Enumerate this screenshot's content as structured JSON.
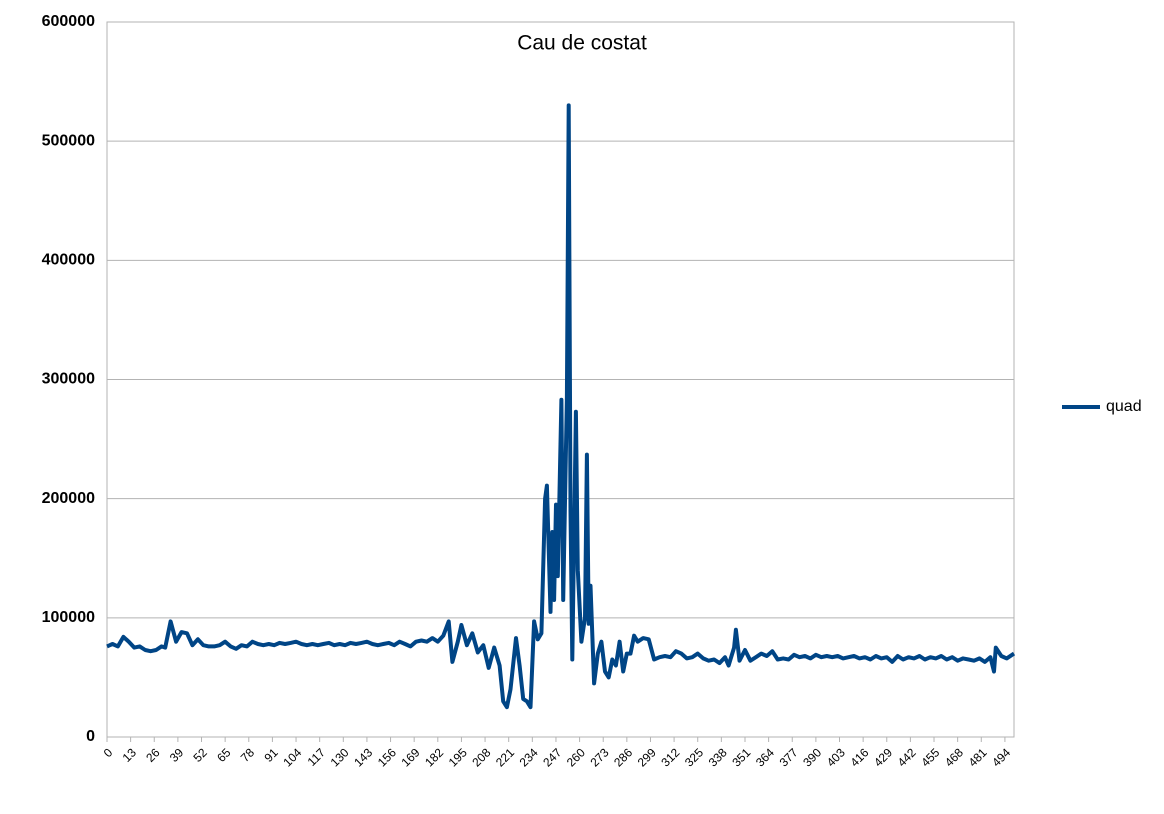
{
  "chart_data": {
    "type": "line",
    "title": "Cau de costat",
    "x": [
      0,
      3,
      6,
      9,
      12,
      15,
      18,
      21,
      24,
      27,
      30,
      32,
      35,
      38,
      41,
      44,
      47,
      50,
      53,
      56,
      59,
      62,
      65,
      68,
      71,
      74,
      77,
      80,
      83,
      86,
      89,
      92,
      95,
      98,
      101,
      104,
      107,
      110,
      113,
      116,
      119,
      122,
      125,
      128,
      131,
      134,
      137,
      140,
      143,
      146,
      149,
      152,
      155,
      158,
      161,
      164,
      167,
      170,
      173,
      176,
      179,
      182,
      185,
      188,
      190,
      193,
      195,
      198,
      201,
      204,
      207,
      210,
      213,
      216,
      218,
      220,
      222,
      225,
      227,
      229,
      231,
      233,
      235,
      237,
      239,
      241,
      242,
      244,
      245,
      246,
      247,
      248,
      250,
      251,
      253,
      254,
      255,
      256,
      258,
      259,
      261,
      263,
      264,
      265,
      266,
      268,
      270,
      272,
      274,
      276,
      278,
      280,
      282,
      284,
      286,
      288,
      290,
      292,
      295,
      298,
      301,
      304,
      307,
      310,
      313,
      316,
      319,
      322,
      325,
      328,
      331,
      334,
      337,
      340,
      342,
      345,
      346,
      348,
      351,
      354,
      357,
      360,
      363,
      366,
      369,
      372,
      375,
      378,
      381,
      384,
      387,
      390,
      393,
      396,
      399,
      402,
      405,
      408,
      411,
      414,
      417,
      420,
      423,
      426,
      429,
      432,
      435,
      438,
      441,
      444,
      447,
      450,
      453,
      456,
      459,
      462,
      465,
      468,
      471,
      474,
      477,
      480,
      483,
      486,
      488,
      489,
      492,
      495,
      499
    ],
    "series": [
      {
        "name": "quad",
        "color": "#004586",
        "values": [
          76000,
          78000,
          76000,
          84000,
          80000,
          75000,
          76000,
          73000,
          72000,
          73000,
          76000,
          75000,
          97000,
          80000,
          88000,
          87000,
          77000,
          82000,
          77000,
          76000,
          76000,
          77000,
          80000,
          76000,
          74000,
          77000,
          76000,
          80000,
          78000,
          77000,
          78000,
          77000,
          79000,
          78000,
          79000,
          80000,
          78000,
          77000,
          78000,
          77000,
          78000,
          79000,
          77000,
          78000,
          77000,
          79000,
          78000,
          79000,
          80000,
          78000,
          77000,
          78000,
          79000,
          77000,
          80000,
          78000,
          76000,
          80000,
          81000,
          80000,
          83000,
          80000,
          85000,
          97000,
          63000,
          80000,
          94000,
          77000,
          87000,
          71000,
          77000,
          58000,
          75000,
          60000,
          30000,
          25000,
          40000,
          83000,
          60000,
          32000,
          30000,
          25000,
          97000,
          82000,
          87000,
          200000,
          211000,
          105000,
          172000,
          115000,
          195000,
          135000,
          283000,
          115000,
          285000,
          530000,
          190000,
          65000,
          273000,
          140000,
          80000,
          100000,
          237000,
          95000,
          127000,
          45000,
          70000,
          80000,
          55000,
          50000,
          65000,
          60000,
          80000,
          55000,
          70000,
          70000,
          85000,
          80000,
          83000,
          82000,
          65000,
          67000,
          68000,
          67000,
          72000,
          70000,
          66000,
          67000,
          70000,
          66000,
          64000,
          65000,
          62000,
          67000,
          60000,
          75000,
          90000,
          64000,
          73000,
          64000,
          67000,
          70000,
          68000,
          72000,
          65000,
          66000,
          65000,
          69000,
          67000,
          68000,
          66000,
          69000,
          67000,
          68000,
          67000,
          68000,
          66000,
          67000,
          68000,
          66000,
          67000,
          65000,
          68000,
          66000,
          67000,
          63000,
          68000,
          65000,
          67000,
          66000,
          68000,
          65000,
          67000,
          66000,
          68000,
          65000,
          67000,
          64000,
          66000,
          65000,
          64000,
          66000,
          63000,
          67000,
          55000,
          75000,
          68000,
          66000,
          70000
        ]
      }
    ],
    "xlim": [
      0,
      499
    ],
    "xticks": [
      0,
      13,
      26,
      39,
      52,
      65,
      78,
      91,
      104,
      117,
      130,
      143,
      156,
      169,
      182,
      195,
      208,
      221,
      234,
      247,
      260,
      273,
      286,
      299,
      312,
      325,
      338,
      351,
      364,
      377,
      390,
      403,
      416,
      429,
      442,
      455,
      468,
      481,
      494
    ],
    "ylim": [
      0,
      600000
    ],
    "yticks": [
      0,
      100000,
      200000,
      300000,
      400000,
      500000,
      600000
    ],
    "grid": true,
    "legend": "right"
  }
}
